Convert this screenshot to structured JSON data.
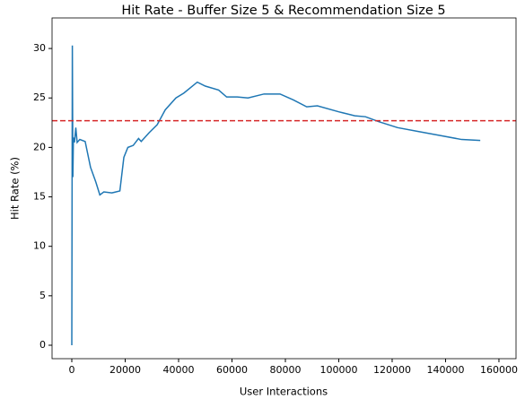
{
  "chart_data": {
    "type": "line",
    "title": "Hit Rate - Buffer Size 5 & Recommendation Size 5",
    "x_label": "User Interactions",
    "y_label": "Hit Rate (%)",
    "series": [
      {
        "name": "Hit Rate",
        "color": "#1f77b4",
        "x": [
          0,
          200,
          400,
          600,
          1000,
          1500,
          2000,
          3000,
          5000,
          7000,
          9000,
          10500,
          12000,
          15000,
          18000,
          19500,
          21000,
          23000,
          25000,
          26000,
          29000,
          32000,
          35000,
          39000,
          42000,
          47000,
          50000,
          55000,
          58000,
          62000,
          66000,
          72000,
          78000,
          83000,
          88000,
          92000,
          100000,
          106000,
          110000,
          115000,
          122000,
          130000,
          138000,
          146000,
          153000
        ],
        "values": [
          0,
          30.3,
          17,
          21,
          20.5,
          22,
          20.5,
          20.8,
          20.6,
          18,
          16.5,
          15.2,
          15.5,
          15.4,
          15.6,
          19,
          20,
          20.2,
          20.9,
          20.6,
          21.5,
          22.3,
          23.8,
          25,
          25.5,
          26.6,
          26.2,
          25.8,
          25.1,
          25.1,
          25,
          25.4,
          25.4,
          24.8,
          24.1,
          24.2,
          23.6,
          23.2,
          23.1,
          22.6,
          22,
          21.6,
          21.2,
          20.8,
          20.7
        ]
      }
    ],
    "hline": {
      "value": 22.7,
      "color": "#d62728"
    },
    "xlim": [
      -7400,
      166400
    ],
    "ylim": [
      -1.36,
      33.09
    ],
    "xticks": [
      0,
      20000,
      40000,
      60000,
      80000,
      100000,
      120000,
      140000,
      160000
    ],
    "yticks": [
      0,
      5,
      10,
      15,
      20,
      25,
      30
    ]
  }
}
